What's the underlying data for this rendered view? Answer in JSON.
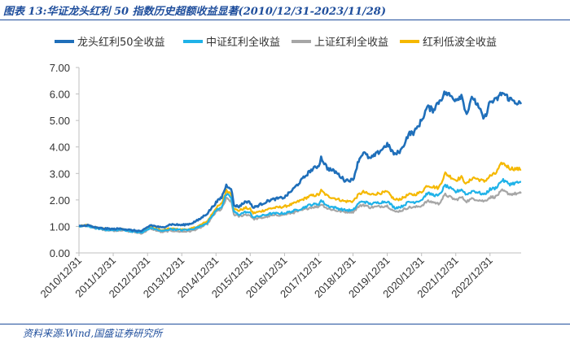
{
  "figure": {
    "title": "图表 13:华证龙头红利 50 指数历史超额收益显著(2010/12/31-2023/11/28)",
    "source": "资料来源:Wind,国盛证券研究所"
  },
  "colors": {
    "frame": "#1f4e9c",
    "axis": "#bfbfbf"
  },
  "chart_data": {
    "type": "line",
    "title": "",
    "xlabel": "",
    "ylabel": "",
    "ylim": [
      0,
      7
    ],
    "yticks": [
      "0.00",
      "1.00",
      "2.00",
      "3.00",
      "4.00",
      "5.00",
      "6.00",
      "7.00"
    ],
    "xlim": [
      "2010-12-31",
      "2023-11-28"
    ],
    "xticks": [
      "2010/12/31",
      "2011/12/31",
      "2012/12/31",
      "2013/12/31",
      "2014/12/31",
      "2015/12/31",
      "2016/12/31",
      "2017/12/31",
      "2018/12/31",
      "2019/12/31",
      "2020/12/31",
      "2021/12/31",
      "2022/12/31"
    ],
    "legend_position": "top",
    "grid": false,
    "series": [
      {
        "name": "龙头红利50全收益",
        "color": "#1f6fba",
        "points": [
          [
            "2010-12-31",
            1.0
          ],
          [
            "2011-04-01",
            1.05
          ],
          [
            "2011-07-01",
            0.95
          ],
          [
            "2011-10-01",
            0.92
          ],
          [
            "2011-12-31",
            0.9
          ],
          [
            "2012-04-01",
            0.92
          ],
          [
            "2012-07-01",
            0.86
          ],
          [
            "2012-11-01",
            0.82
          ],
          [
            "2013-02-01",
            1.05
          ],
          [
            "2013-06-01",
            0.95
          ],
          [
            "2013-09-01",
            1.08
          ],
          [
            "2013-12-31",
            1.05
          ],
          [
            "2014-04-01",
            1.1
          ],
          [
            "2014-07-01",
            1.25
          ],
          [
            "2014-10-01",
            1.5
          ],
          [
            "2014-12-31",
            1.9
          ],
          [
            "2015-03-01",
            2.1
          ],
          [
            "2015-04-20",
            2.55
          ],
          [
            "2015-06-10",
            2.45
          ],
          [
            "2015-07-10",
            1.8
          ],
          [
            "2015-09-01",
            1.75
          ],
          [
            "2015-11-15",
            1.95
          ],
          [
            "2015-12-31",
            1.9
          ],
          [
            "2016-02-01",
            1.7
          ],
          [
            "2016-05-01",
            1.85
          ],
          [
            "2016-08-01",
            2.0
          ],
          [
            "2016-12-31",
            2.1
          ],
          [
            "2017-04-01",
            2.4
          ],
          [
            "2017-07-01",
            2.75
          ],
          [
            "2017-10-01",
            3.1
          ],
          [
            "2017-12-31",
            3.3
          ],
          [
            "2018-01-25",
            3.6
          ],
          [
            "2018-04-01",
            3.2
          ],
          [
            "2018-07-01",
            3.05
          ],
          [
            "2018-10-01",
            2.75
          ],
          [
            "2018-12-31",
            2.75
          ],
          [
            "2019-03-01",
            3.5
          ],
          [
            "2019-04-20",
            3.8
          ],
          [
            "2019-07-01",
            3.55
          ],
          [
            "2019-10-01",
            3.8
          ],
          [
            "2019-12-31",
            4.1
          ],
          [
            "2020-03-20",
            3.7
          ],
          [
            "2020-06-01",
            3.9
          ],
          [
            "2020-08-15",
            4.5
          ],
          [
            "2020-10-15",
            4.55
          ],
          [
            "2020-12-31",
            5.0
          ],
          [
            "2021-03-01",
            5.5
          ],
          [
            "2021-05-01",
            5.4
          ],
          [
            "2021-07-01",
            5.7
          ],
          [
            "2021-09-10",
            6.05
          ],
          [
            "2021-12-31",
            5.8
          ],
          [
            "2022-03-01",
            5.95
          ],
          [
            "2022-04-26",
            5.25
          ],
          [
            "2022-07-01",
            5.9
          ],
          [
            "2022-10-31",
            5.05
          ],
          [
            "2022-12-31",
            5.7
          ],
          [
            "2023-03-01",
            5.75
          ],
          [
            "2023-05-10",
            6.05
          ],
          [
            "2023-08-01",
            5.8
          ],
          [
            "2023-11-28",
            5.62
          ]
        ]
      },
      {
        "name": "中证红利全收益",
        "color": "#1fb2e8",
        "points": [
          [
            "2010-12-31",
            1.0
          ],
          [
            "2011-04-01",
            1.02
          ],
          [
            "2011-07-01",
            0.93
          ],
          [
            "2011-10-01",
            0.88
          ],
          [
            "2011-12-31",
            0.85
          ],
          [
            "2012-04-01",
            0.88
          ],
          [
            "2012-07-01",
            0.82
          ],
          [
            "2012-11-01",
            0.76
          ],
          [
            "2013-02-01",
            0.95
          ],
          [
            "2013-06-01",
            0.82
          ],
          [
            "2013-09-01",
            0.9
          ],
          [
            "2013-12-31",
            0.86
          ],
          [
            "2014-04-01",
            0.88
          ],
          [
            "2014-07-01",
            0.98
          ],
          [
            "2014-10-01",
            1.15
          ],
          [
            "2014-12-31",
            1.6
          ],
          [
            "2015-03-01",
            1.75
          ],
          [
            "2015-04-20",
            2.2
          ],
          [
            "2015-06-10",
            2.1
          ],
          [
            "2015-07-10",
            1.55
          ],
          [
            "2015-09-01",
            1.45
          ],
          [
            "2015-11-15",
            1.55
          ],
          [
            "2015-12-31",
            1.5
          ],
          [
            "2016-02-01",
            1.35
          ],
          [
            "2016-05-01",
            1.4
          ],
          [
            "2016-08-01",
            1.48
          ],
          [
            "2016-12-31",
            1.5
          ],
          [
            "2017-04-01",
            1.58
          ],
          [
            "2017-07-01",
            1.68
          ],
          [
            "2017-10-01",
            1.82
          ],
          [
            "2017-12-31",
            1.85
          ],
          [
            "2018-01-25",
            1.98
          ],
          [
            "2018-04-01",
            1.78
          ],
          [
            "2018-07-01",
            1.7
          ],
          [
            "2018-10-01",
            1.62
          ],
          [
            "2018-12-31",
            1.6
          ],
          [
            "2019-03-01",
            1.88
          ],
          [
            "2019-04-20",
            1.95
          ],
          [
            "2019-07-01",
            1.85
          ],
          [
            "2019-10-01",
            1.9
          ],
          [
            "2019-12-31",
            1.95
          ],
          [
            "2020-03-20",
            1.7
          ],
          [
            "2020-06-01",
            1.75
          ],
          [
            "2020-08-15",
            1.92
          ],
          [
            "2020-10-15",
            1.92
          ],
          [
            "2020-12-31",
            2.0
          ],
          [
            "2021-03-01",
            2.25
          ],
          [
            "2021-05-01",
            2.2
          ],
          [
            "2021-07-01",
            2.15
          ],
          [
            "2021-09-10",
            2.55
          ],
          [
            "2021-12-31",
            2.3
          ],
          [
            "2022-03-01",
            2.4
          ],
          [
            "2022-04-26",
            2.2
          ],
          [
            "2022-07-01",
            2.35
          ],
          [
            "2022-10-31",
            2.2
          ],
          [
            "2022-12-31",
            2.4
          ],
          [
            "2023-03-01",
            2.45
          ],
          [
            "2023-05-10",
            2.75
          ],
          [
            "2023-08-01",
            2.6
          ],
          [
            "2023-11-28",
            2.68
          ]
        ]
      },
      {
        "name": "上证红利全收益",
        "color": "#a6a6a6",
        "points": [
          [
            "2010-12-31",
            1.0
          ],
          [
            "2011-04-01",
            1.02
          ],
          [
            "2011-07-01",
            0.93
          ],
          [
            "2011-10-01",
            0.87
          ],
          [
            "2011-12-31",
            0.84
          ],
          [
            "2012-04-01",
            0.86
          ],
          [
            "2012-07-01",
            0.8
          ],
          [
            "2012-11-01",
            0.74
          ],
          [
            "2013-02-01",
            0.92
          ],
          [
            "2013-06-01",
            0.78
          ],
          [
            "2013-09-01",
            0.84
          ],
          [
            "2013-12-31",
            0.8
          ],
          [
            "2014-04-01",
            0.82
          ],
          [
            "2014-07-01",
            0.92
          ],
          [
            "2014-10-01",
            1.1
          ],
          [
            "2014-12-31",
            1.55
          ],
          [
            "2015-03-01",
            1.65
          ],
          [
            "2015-04-20",
            2.05
          ],
          [
            "2015-06-10",
            1.95
          ],
          [
            "2015-07-10",
            1.45
          ],
          [
            "2015-09-01",
            1.38
          ],
          [
            "2015-11-15",
            1.45
          ],
          [
            "2015-12-31",
            1.42
          ],
          [
            "2016-02-01",
            1.28
          ],
          [
            "2016-05-01",
            1.32
          ],
          [
            "2016-08-01",
            1.4
          ],
          [
            "2016-12-31",
            1.45
          ],
          [
            "2017-04-01",
            1.52
          ],
          [
            "2017-07-01",
            1.6
          ],
          [
            "2017-10-01",
            1.72
          ],
          [
            "2017-12-31",
            1.75
          ],
          [
            "2018-01-25",
            1.85
          ],
          [
            "2018-04-01",
            1.68
          ],
          [
            "2018-07-01",
            1.6
          ],
          [
            "2018-10-01",
            1.55
          ],
          [
            "2018-12-31",
            1.55
          ],
          [
            "2019-03-01",
            1.75
          ],
          [
            "2019-04-20",
            1.82
          ],
          [
            "2019-07-01",
            1.72
          ],
          [
            "2019-10-01",
            1.75
          ],
          [
            "2019-12-31",
            1.78
          ],
          [
            "2020-03-20",
            1.55
          ],
          [
            "2020-06-01",
            1.6
          ],
          [
            "2020-08-15",
            1.72
          ],
          [
            "2020-10-15",
            1.72
          ],
          [
            "2020-12-31",
            1.78
          ],
          [
            "2021-03-01",
            1.95
          ],
          [
            "2021-05-01",
            1.92
          ],
          [
            "2021-07-01",
            1.85
          ],
          [
            "2021-09-10",
            2.2
          ],
          [
            "2021-12-31",
            2.0
          ],
          [
            "2022-03-01",
            2.1
          ],
          [
            "2022-04-26",
            1.95
          ],
          [
            "2022-07-01",
            2.05
          ],
          [
            "2022-10-31",
            1.95
          ],
          [
            "2022-12-31",
            2.1
          ],
          [
            "2023-03-01",
            2.12
          ],
          [
            "2023-05-10",
            2.35
          ],
          [
            "2023-08-01",
            2.22
          ],
          [
            "2023-11-28",
            2.25
          ]
        ]
      },
      {
        "name": "红利低波全收益",
        "color": "#f5b800",
        "points": [
          [
            "2010-12-31",
            1.0
          ],
          [
            "2011-04-01",
            1.05
          ],
          [
            "2011-07-01",
            0.96
          ],
          [
            "2011-10-01",
            0.9
          ],
          [
            "2011-12-31",
            0.88
          ],
          [
            "2012-04-01",
            0.9
          ],
          [
            "2012-07-01",
            0.84
          ],
          [
            "2012-11-01",
            0.78
          ],
          [
            "2013-02-01",
            0.98
          ],
          [
            "2013-06-01",
            0.85
          ],
          [
            "2013-09-01",
            0.92
          ],
          [
            "2013-12-31",
            0.88
          ],
          [
            "2014-04-01",
            0.9
          ],
          [
            "2014-07-01",
            1.02
          ],
          [
            "2014-10-01",
            1.2
          ],
          [
            "2014-12-31",
            1.7
          ],
          [
            "2015-03-01",
            1.85
          ],
          [
            "2015-04-20",
            2.35
          ],
          [
            "2015-06-10",
            2.25
          ],
          [
            "2015-07-10",
            1.65
          ],
          [
            "2015-09-01",
            1.6
          ],
          [
            "2015-11-15",
            1.7
          ],
          [
            "2015-12-31",
            1.65
          ],
          [
            "2016-02-01",
            1.5
          ],
          [
            "2016-05-01",
            1.58
          ],
          [
            "2016-08-01",
            1.68
          ],
          [
            "2016-12-31",
            1.75
          ],
          [
            "2017-04-01",
            1.85
          ],
          [
            "2017-07-01",
            2.0
          ],
          [
            "2017-10-01",
            2.15
          ],
          [
            "2017-12-31",
            2.2
          ],
          [
            "2018-01-25",
            2.35
          ],
          [
            "2018-04-01",
            2.15
          ],
          [
            "2018-07-01",
            2.05
          ],
          [
            "2018-10-01",
            1.95
          ],
          [
            "2018-12-31",
            1.95
          ],
          [
            "2019-03-01",
            2.2
          ],
          [
            "2019-04-20",
            2.3
          ],
          [
            "2019-07-01",
            2.2
          ],
          [
            "2019-10-01",
            2.25
          ],
          [
            "2019-12-31",
            2.3
          ],
          [
            "2020-03-20",
            2.0
          ],
          [
            "2020-06-01",
            2.05
          ],
          [
            "2020-08-15",
            2.2
          ],
          [
            "2020-10-15",
            2.2
          ],
          [
            "2020-12-31",
            2.3
          ],
          [
            "2021-03-01",
            2.55
          ],
          [
            "2021-05-01",
            2.5
          ],
          [
            "2021-07-01",
            2.45
          ],
          [
            "2021-09-10",
            3.0
          ],
          [
            "2021-12-31",
            2.75
          ],
          [
            "2022-03-01",
            2.85
          ],
          [
            "2022-04-26",
            2.6
          ],
          [
            "2022-07-01",
            2.85
          ],
          [
            "2022-10-31",
            2.7
          ],
          [
            "2022-12-31",
            2.9
          ],
          [
            "2023-03-01",
            3.0
          ],
          [
            "2023-05-10",
            3.4
          ],
          [
            "2023-08-01",
            3.2
          ],
          [
            "2023-11-28",
            3.15
          ]
        ]
      }
    ]
  }
}
